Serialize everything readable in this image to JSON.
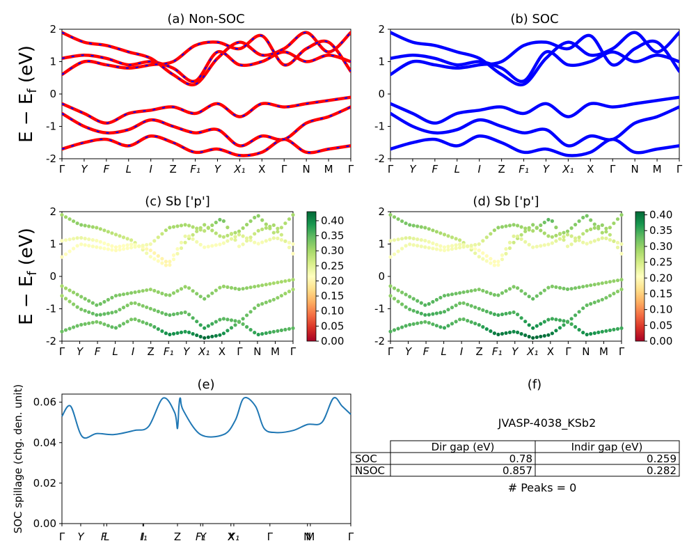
{
  "figure": {
    "ylabel_main": "E − E",
    "ylabel_sub": "f",
    "ylabel_unit": " (eV)",
    "kpath": [
      "Γ",
      "Y",
      "F",
      "L",
      "I",
      "Z",
      "F₁",
      "Y",
      "X₁",
      "X",
      "Γ",
      "N",
      "M",
      "Γ"
    ]
  },
  "chart_data": [
    {
      "panel": "a",
      "type": "line",
      "title": "(a) Non-SOC",
      "ylim": [
        -2,
        2
      ],
      "yticks": [
        -2,
        -1,
        0,
        1,
        2
      ],
      "xtick_labels": [
        "Γ",
        "Y",
        "F",
        "L",
        "I",
        "Z",
        "F₁",
        "Y",
        "X₁",
        "X",
        "Γ",
        "N",
        "M",
        "Γ"
      ],
      "series": [
        {
          "name": "band-c1",
          "color": "#ff0000",
          "dashed_overlay": "#0000ff",
          "values": [
            1.9,
            1.6,
            1.5,
            1.3,
            1.1,
            0.6,
            0.3,
            1.1,
            1.6,
            1.2,
            1.4,
            1.9,
            1.3,
            1.9
          ]
        },
        {
          "name": "band-c2",
          "color": "#ff0000",
          "dashed_overlay": "#0000ff",
          "values": [
            1.1,
            1.2,
            1.1,
            0.9,
            1.0,
            0.8,
            0.4,
            1.3,
            0.9,
            1.0,
            1.3,
            1.0,
            1.2,
            1.0
          ]
        },
        {
          "name": "band-c3",
          "color": "#ff0000",
          "dashed_overlay": "#0000ff",
          "values": [
            0.6,
            1.0,
            0.9,
            0.8,
            0.9,
            1.0,
            1.5,
            1.6,
            1.4,
            1.8,
            0.9,
            1.4,
            1.6,
            0.7
          ]
        },
        {
          "name": "band-v1",
          "color": "#ff0000",
          "dashed_overlay": "#0000ff",
          "values": [
            -0.3,
            -0.6,
            -0.9,
            -0.6,
            -0.5,
            -0.4,
            -0.6,
            -0.3,
            -0.7,
            -0.3,
            -0.4,
            -0.3,
            -0.2,
            -0.1
          ]
        },
        {
          "name": "band-v2",
          "color": "#ff0000",
          "dashed_overlay": "#0000ff",
          "values": [
            -0.6,
            -1.0,
            -1.2,
            -1.1,
            -0.8,
            -1.0,
            -1.2,
            -1.1,
            -1.6,
            -1.3,
            -1.4,
            -0.9,
            -0.7,
            -0.4
          ]
        },
        {
          "name": "band-v3",
          "color": "#ff0000",
          "dashed_overlay": "#0000ff",
          "values": [
            -1.7,
            -1.5,
            -1.4,
            -1.6,
            -1.3,
            -1.5,
            -1.8,
            -1.7,
            -1.9,
            -1.8,
            -1.4,
            -1.8,
            -1.7,
            -1.6
          ]
        }
      ]
    },
    {
      "panel": "b",
      "type": "line",
      "title": "(b) SOC",
      "ylim": [
        -2,
        2
      ],
      "yticks": [
        -2,
        -1,
        0,
        1,
        2
      ],
      "xtick_labels": [
        "Γ",
        "Y",
        "F",
        "L",
        "I",
        "Z",
        "F₁",
        "Y",
        "X₁",
        "X",
        "Γ",
        "N",
        "M",
        "Γ"
      ],
      "series": [
        {
          "name": "band-c1",
          "color": "#0000ff",
          "values": [
            1.9,
            1.6,
            1.5,
            1.3,
            1.1,
            0.6,
            0.3,
            1.1,
            1.6,
            1.2,
            1.4,
            1.9,
            1.3,
            1.9
          ]
        },
        {
          "name": "band-c2",
          "color": "#0000ff",
          "values": [
            1.1,
            1.2,
            1.1,
            0.9,
            1.0,
            0.8,
            0.4,
            1.3,
            0.9,
            1.0,
            1.3,
            1.0,
            1.2,
            1.0
          ]
        },
        {
          "name": "band-c3",
          "color": "#0000ff",
          "values": [
            0.6,
            1.0,
            0.9,
            0.8,
            0.9,
            1.0,
            1.5,
            1.6,
            1.4,
            1.8,
            0.9,
            1.4,
            1.6,
            0.7
          ]
        },
        {
          "name": "band-v1",
          "color": "#0000ff",
          "values": [
            -0.3,
            -0.6,
            -0.9,
            -0.6,
            -0.5,
            -0.4,
            -0.6,
            -0.3,
            -0.7,
            -0.3,
            -0.4,
            -0.3,
            -0.2,
            -0.1
          ]
        },
        {
          "name": "band-v2",
          "color": "#0000ff",
          "values": [
            -0.6,
            -1.0,
            -1.2,
            -1.1,
            -0.8,
            -1.0,
            -1.2,
            -1.1,
            -1.6,
            -1.3,
            -1.4,
            -0.9,
            -0.7,
            -0.4
          ]
        },
        {
          "name": "band-v3",
          "color": "#0000ff",
          "values": [
            -1.7,
            -1.5,
            -1.4,
            -1.6,
            -1.3,
            -1.5,
            -1.8,
            -1.7,
            -1.9,
            -1.8,
            -1.4,
            -1.8,
            -1.7,
            -1.6
          ]
        }
      ]
    },
    {
      "panel": "c",
      "type": "scatter",
      "title": "(c)  Sb ['p']",
      "ylim": [
        -2,
        2
      ],
      "yticks": [
        -2,
        -1,
        0,
        1,
        2
      ],
      "xtick_labels": [
        "Γ",
        "Y",
        "F",
        "L",
        "I",
        "Z",
        "F₁",
        "Y",
        "X₁",
        "X",
        "Γ",
        "N",
        "M",
        "Γ"
      ],
      "colorbar": {
        "ticks": [
          "0.00",
          "0.05",
          "0.10",
          "0.15",
          "0.20",
          "0.25",
          "0.30",
          "0.35",
          "0.40"
        ],
        "max": 0.43,
        "colormap": "RdYlGn"
      },
      "bands": [
        {
          "values": [
            1.9,
            1.6,
            1.5,
            1.3,
            1.1,
            0.6,
            0.3,
            1.1,
            1.6,
            1.2,
            1.4,
            1.9,
            1.3,
            1.9
          ],
          "weights": [
            0.3,
            0.32,
            0.3,
            0.28,
            0.26,
            0.22,
            0.2,
            0.26,
            0.3,
            0.28,
            0.3,
            0.32,
            0.28,
            0.3
          ]
        },
        {
          "values": [
            1.1,
            1.2,
            1.1,
            0.9,
            1.0,
            0.8,
            0.4,
            1.3,
            0.9,
            1.0,
            1.3,
            1.0,
            1.2,
            1.0
          ],
          "weights": [
            0.22,
            0.24,
            0.22,
            0.21,
            0.22,
            0.2,
            0.2,
            0.24,
            0.22,
            0.22,
            0.26,
            0.22,
            0.24,
            0.22
          ]
        },
        {
          "values": [
            0.6,
            1.0,
            0.9,
            0.8,
            0.9,
            1.0,
            1.5,
            1.6,
            1.4,
            1.8,
            0.9,
            1.4,
            1.6,
            0.7
          ],
          "weights": [
            0.21,
            0.22,
            0.22,
            0.21,
            0.22,
            0.23,
            0.3,
            0.3,
            0.28,
            0.34,
            0.22,
            0.28,
            0.3,
            0.21
          ]
        },
        {
          "values": [
            -0.3,
            -0.6,
            -0.9,
            -0.6,
            -0.5,
            -0.4,
            -0.6,
            -0.3,
            -0.7,
            -0.3,
            -0.4,
            -0.3,
            -0.2,
            -0.1
          ],
          "weights": [
            0.3,
            0.32,
            0.34,
            0.33,
            0.32,
            0.31,
            0.32,
            0.31,
            0.33,
            0.31,
            0.32,
            0.31,
            0.3,
            0.3
          ]
        },
        {
          "values": [
            -0.6,
            -1.0,
            -1.2,
            -1.1,
            -0.8,
            -1.0,
            -1.2,
            -1.1,
            -1.6,
            -1.3,
            -1.4,
            -0.9,
            -0.7,
            -0.4
          ],
          "weights": [
            0.3,
            0.33,
            0.35,
            0.34,
            0.32,
            0.33,
            0.35,
            0.34,
            0.38,
            0.35,
            0.35,
            0.33,
            0.32,
            0.3
          ]
        },
        {
          "values": [
            -1.7,
            -1.5,
            -1.4,
            -1.6,
            -1.3,
            -1.5,
            -1.8,
            -1.7,
            -1.9,
            -1.8,
            -1.4,
            -1.8,
            -1.7,
            -1.6
          ],
          "weights": [
            0.34,
            0.34,
            0.33,
            0.35,
            0.33,
            0.35,
            0.4,
            0.38,
            0.43,
            0.4,
            0.34,
            0.38,
            0.36,
            0.35
          ]
        }
      ]
    },
    {
      "panel": "d",
      "type": "scatter",
      "title": "(d) Sb ['p']",
      "ylim": [
        -2,
        2
      ],
      "yticks": [
        -2,
        -1,
        0,
        1,
        2
      ],
      "xtick_labels": [
        "Γ",
        "Y",
        "F",
        "L",
        "I",
        "Z",
        "F₁",
        "Y",
        "X₁",
        "X",
        "Γ",
        "N",
        "M",
        "Γ"
      ],
      "colorbar": {
        "ticks": [
          "0.00",
          "0.05",
          "0.10",
          "0.15",
          "0.20",
          "0.25",
          "0.30",
          "0.35",
          "0.40"
        ],
        "max": 0.41,
        "colormap": "RdYlGn"
      },
      "bands": [
        {
          "values": [
            1.9,
            1.6,
            1.5,
            1.3,
            1.1,
            0.6,
            0.3,
            1.1,
            1.6,
            1.2,
            1.4,
            1.9,
            1.3,
            1.9
          ],
          "weights": [
            0.3,
            0.32,
            0.3,
            0.28,
            0.26,
            0.22,
            0.2,
            0.26,
            0.3,
            0.28,
            0.3,
            0.32,
            0.28,
            0.3
          ]
        },
        {
          "values": [
            1.1,
            1.2,
            1.1,
            0.9,
            1.0,
            0.8,
            0.4,
            1.3,
            0.9,
            1.0,
            1.3,
            1.0,
            1.2,
            1.0
          ],
          "weights": [
            0.22,
            0.24,
            0.22,
            0.21,
            0.22,
            0.2,
            0.2,
            0.24,
            0.22,
            0.22,
            0.26,
            0.22,
            0.24,
            0.22
          ]
        },
        {
          "values": [
            0.6,
            1.0,
            0.9,
            0.8,
            0.9,
            1.0,
            1.5,
            1.6,
            1.4,
            1.8,
            0.9,
            1.4,
            1.6,
            0.7
          ],
          "weights": [
            0.21,
            0.22,
            0.22,
            0.21,
            0.22,
            0.23,
            0.3,
            0.3,
            0.28,
            0.34,
            0.22,
            0.28,
            0.3,
            0.21
          ]
        },
        {
          "values": [
            -0.3,
            -0.6,
            -0.9,
            -0.6,
            -0.5,
            -0.4,
            -0.6,
            -0.3,
            -0.7,
            -0.3,
            -0.4,
            -0.3,
            -0.2,
            -0.1
          ],
          "weights": [
            0.3,
            0.32,
            0.34,
            0.33,
            0.32,
            0.31,
            0.32,
            0.31,
            0.33,
            0.31,
            0.32,
            0.31,
            0.3,
            0.3
          ]
        },
        {
          "values": [
            -0.6,
            -1.0,
            -1.2,
            -1.1,
            -0.8,
            -1.0,
            -1.2,
            -1.1,
            -1.6,
            -1.3,
            -1.4,
            -0.9,
            -0.7,
            -0.4
          ],
          "weights": [
            0.3,
            0.33,
            0.35,
            0.34,
            0.32,
            0.33,
            0.35,
            0.34,
            0.38,
            0.35,
            0.35,
            0.33,
            0.32,
            0.3
          ]
        },
        {
          "values": [
            -1.7,
            -1.5,
            -1.4,
            -1.6,
            -1.3,
            -1.5,
            -1.8,
            -1.7,
            -1.9,
            -1.8,
            -1.4,
            -1.8,
            -1.7,
            -1.6
          ],
          "weights": [
            0.34,
            0.34,
            0.33,
            0.35,
            0.33,
            0.35,
            0.4,
            0.38,
            0.41,
            0.4,
            0.34,
            0.38,
            0.36,
            0.35
          ]
        }
      ]
    },
    {
      "panel": "e",
      "type": "line",
      "title": "(e)",
      "ylabel": "SOC spillage (chg. den. unit)",
      "ylim": [
        0.0,
        0.064
      ],
      "yticks": [
        "0.00",
        "0.02",
        "0.04",
        "0.06"
      ],
      "xtick_labels": [
        "Γ",
        "Y",
        "F",
        "L",
        "I",
        "I₁",
        "Z",
        "F₁",
        "Y",
        "X",
        "X₁",
        "Γ",
        "N",
        "M",
        "Γ"
      ],
      "x": [
        0,
        0.03,
        0.07,
        0.12,
        0.18,
        0.25,
        0.3,
        0.35,
        0.39,
        0.4,
        0.405,
        0.41,
        0.42,
        0.48,
        0.56,
        0.6,
        0.63,
        0.67,
        0.7,
        0.74,
        0.8,
        0.85,
        0.9,
        0.94,
        0.97,
        1.0
      ],
      "values": [
        0.053,
        0.058,
        0.043,
        0.0445,
        0.044,
        0.046,
        0.048,
        0.062,
        0.055,
        0.047,
        0.058,
        0.062,
        0.056,
        0.044,
        0.044,
        0.051,
        0.062,
        0.058,
        0.047,
        0.045,
        0.046,
        0.049,
        0.05,
        0.062,
        0.058,
        0.054
      ],
      "color": "#1f77b4"
    }
  ],
  "table_panel": {
    "title": "(f)",
    "subtitle": "JVASP-4038_KSb2",
    "col1": "Dir gap (eV)",
    "col2": "Indir gap (eV)",
    "rows": [
      {
        "label": "SOC",
        "dir": "0.78",
        "indir": "0.259"
      },
      {
        "label": "NSOC",
        "dir": "0.857",
        "indir": "0.282"
      }
    ],
    "peaks": "# Peaks = 0"
  }
}
